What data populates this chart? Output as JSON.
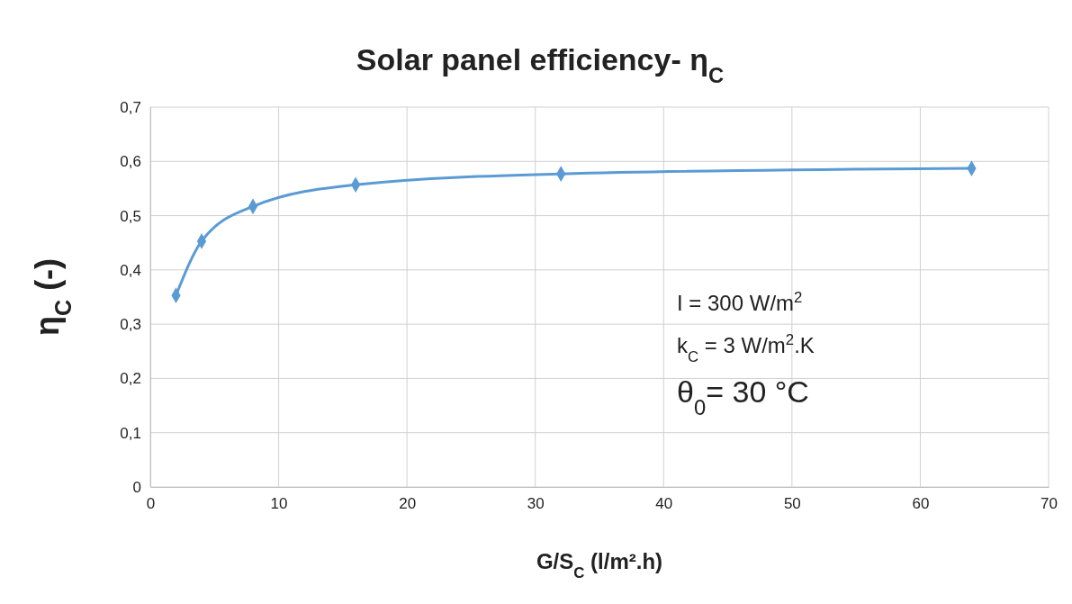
{
  "chart_data": {
    "type": "line",
    "title": "Solar panel efficiency- η$_{C}$",
    "xlabel": "G/S$_{C}$ (l/m².h)",
    "ylabel": "η$_{C}$ (-)",
    "x": [
      2,
      4,
      8,
      16,
      32,
      64
    ],
    "series": [
      {
        "color": "#5b9bd5",
        "values": [
          0.353,
          0.453,
          0.517,
          0.557,
          0.577,
          0.587
        ]
      }
    ],
    "xlim": [
      0,
      70
    ],
    "xticks": [
      0,
      10,
      20,
      30,
      40,
      50,
      60,
      70
    ],
    "ylim": [
      0,
      0.7
    ],
    "yticks": [
      {
        "value": 0,
        "label": "0"
      },
      {
        "value": 0.1,
        "label": "0,1"
      },
      {
        "value": 0.2,
        "label": "0,2"
      },
      {
        "value": 0.3,
        "label": "0,3"
      },
      {
        "value": 0.4,
        "label": "0,4"
      },
      {
        "value": 0.5,
        "label": "0,5"
      },
      {
        "value": 0.6,
        "label": "0,6"
      },
      {
        "value": 0.7,
        "label": "0,7"
      }
    ],
    "grid": true,
    "marker": "diamond",
    "line_style": "solid",
    "annotations": [
      "I = 300 W/m$^{2}$",
      "k$_{C}$ = 3 W/m$^{2}$.K",
      "θ$_{0}$= 30 °C"
    ]
  }
}
